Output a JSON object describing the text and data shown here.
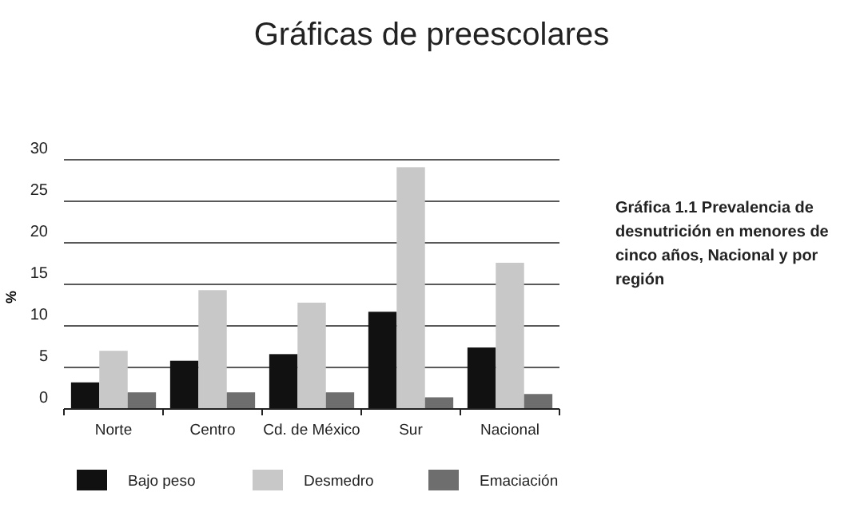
{
  "chart_data": {
    "type": "bar",
    "title": "Gráficas de preescolares",
    "ylabel": "%",
    "categories": [
      "Norte",
      "Centro",
      "Cd. de México",
      "Sur",
      "Nacional"
    ],
    "series": [
      {
        "name": "Bajo peso",
        "color": "#111111",
        "values": [
          3.2,
          5.8,
          6.6,
          11.7,
          7.4
        ]
      },
      {
        "name": "Desmedro",
        "color": "#c8c8c8",
        "values": [
          7.0,
          14.3,
          12.8,
          29.1,
          17.6
        ]
      },
      {
        "name": "Emaciación",
        "color": "#6e6e6e",
        "values": [
          2.0,
          2.0,
          2.0,
          1.4,
          1.8
        ]
      }
    ],
    "ylim": [
      0,
      30
    ],
    "yticks": [
      0,
      5,
      10,
      15,
      20,
      25,
      30
    ],
    "grid": "y",
    "legend": "bottom",
    "annotations": [
      "Gráfica 1.1 Prevalencia de desnutrición en menores de cinco años, Nacional y por región"
    ]
  }
}
